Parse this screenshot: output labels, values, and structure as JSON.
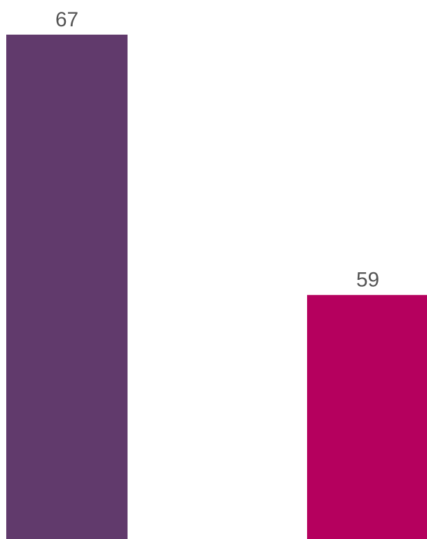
{
  "chart_data": {
    "type": "bar",
    "values": [
      67,
      59
    ],
    "data_labels": [
      "67",
      "59"
    ],
    "colors": [
      "#613a6c",
      "#b5005e"
    ],
    "ylim": [
      51.5,
      67
    ]
  }
}
